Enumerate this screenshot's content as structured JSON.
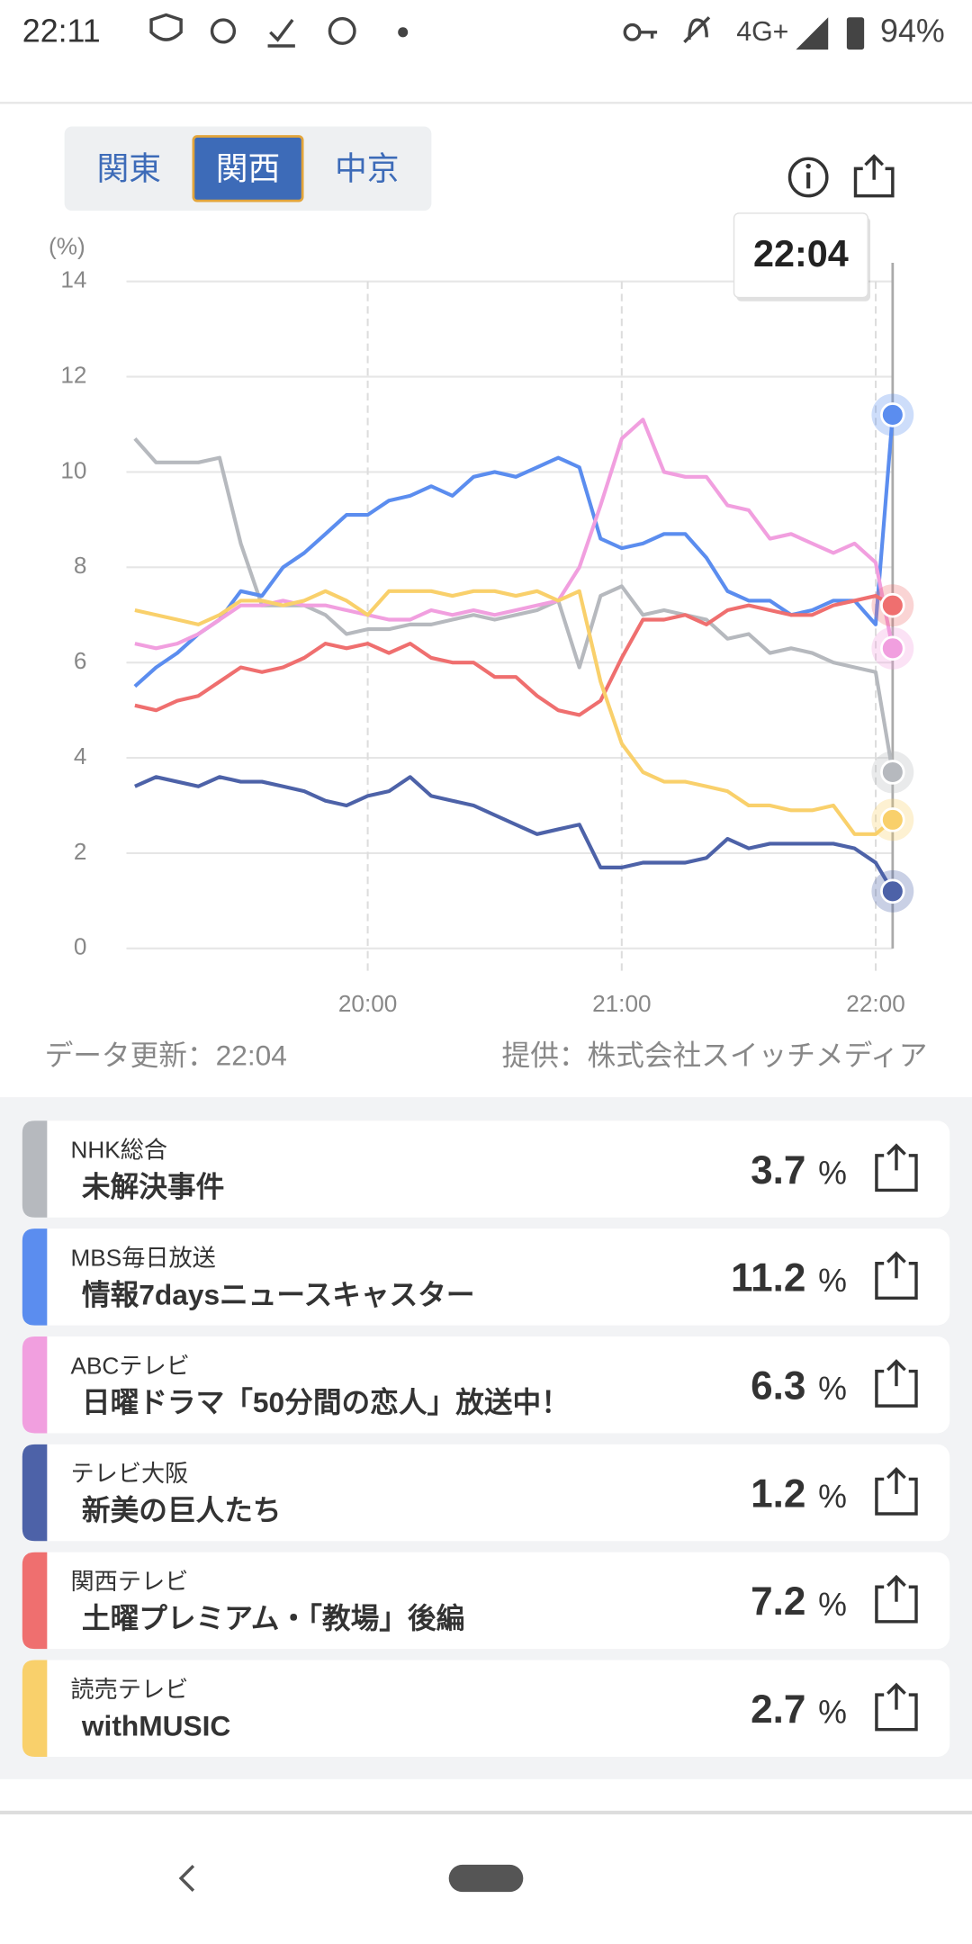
{
  "status_bar": {
    "time": "22:11",
    "network": "4G+",
    "battery": "94%"
  },
  "tabs": [
    "関東",
    "関西",
    "中京"
  ],
  "selected_tab": 1,
  "chart_data": {
    "type": "line",
    "y_label": "(%)",
    "x": [
      "19:05",
      "19:10",
      "19:15",
      "19:20",
      "19:25",
      "19:30",
      "19:35",
      "19:40",
      "19:45",
      "19:50",
      "19:55",
      "20:00",
      "20:05",
      "20:10",
      "20:15",
      "20:20",
      "20:25",
      "20:30",
      "20:35",
      "20:40",
      "20:45",
      "20:50",
      "20:55",
      "21:00",
      "21:05",
      "21:10",
      "21:15",
      "21:20",
      "21:25",
      "21:30",
      "21:35",
      "21:40",
      "21:45",
      "21:50",
      "21:55",
      "22:00",
      "22:04"
    ],
    "xlim": [
      "19:03",
      "22:04"
    ],
    "xticks": [
      "20:00",
      "21:00",
      "22:00"
    ],
    "ylim": [
      0,
      14
    ],
    "yticks": [
      0,
      2,
      4,
      6,
      8,
      10,
      12,
      14
    ],
    "grid": true,
    "series": [
      {
        "name": "NHK総合",
        "color": "#b6b9be",
        "values": [
          10.7,
          10.2,
          10.2,
          10.2,
          10.3,
          8.5,
          7.2,
          7.2,
          7.2,
          7.0,
          6.6,
          6.7,
          6.7,
          6.8,
          6.8,
          6.9,
          7.0,
          6.9,
          7.0,
          7.1,
          7.3,
          5.9,
          7.4,
          7.6,
          7.0,
          7.1,
          7.0,
          6.9,
          6.5,
          6.6,
          6.2,
          6.3,
          6.2,
          6.0,
          5.9,
          5.8,
          3.7
        ]
      },
      {
        "name": "MBS毎日放送",
        "color": "#5b8def",
        "values": [
          5.5,
          5.9,
          6.2,
          6.6,
          6.9,
          7.5,
          7.4,
          8.0,
          8.3,
          8.7,
          9.1,
          9.1,
          9.4,
          9.5,
          9.7,
          9.5,
          9.9,
          10.0,
          9.9,
          10.1,
          10.3,
          10.1,
          8.6,
          8.4,
          8.5,
          8.7,
          8.7,
          8.2,
          7.5,
          7.3,
          7.3,
          7.0,
          7.1,
          7.3,
          7.3,
          6.8,
          11.2
        ]
      },
      {
        "name": "ABCテレビ",
        "color": "#f19fdf",
        "values": [
          6.4,
          6.3,
          6.4,
          6.6,
          6.9,
          7.2,
          7.2,
          7.3,
          7.2,
          7.2,
          7.1,
          7.0,
          6.9,
          6.9,
          7.1,
          7.0,
          7.1,
          7.0,
          7.1,
          7.2,
          7.3,
          8.0,
          9.3,
          10.7,
          11.1,
          10.0,
          9.9,
          9.9,
          9.3,
          9.2,
          8.6,
          8.7,
          8.5,
          8.3,
          8.5,
          8.1,
          6.3
        ]
      },
      {
        "name": "テレビ大阪",
        "color": "#4d62a8",
        "values": [
          3.4,
          3.6,
          3.5,
          3.4,
          3.6,
          3.5,
          3.5,
          3.4,
          3.3,
          3.1,
          3.0,
          3.2,
          3.3,
          3.6,
          3.2,
          3.1,
          3.0,
          2.8,
          2.6,
          2.4,
          2.5,
          2.6,
          1.7,
          1.7,
          1.8,
          1.8,
          1.8,
          1.9,
          2.3,
          2.1,
          2.2,
          2.2,
          2.2,
          2.2,
          2.1,
          1.8,
          1.2
        ]
      },
      {
        "name": "関西テレビ",
        "color": "#ef6f6f",
        "values": [
          5.1,
          5.0,
          5.2,
          5.3,
          5.6,
          5.9,
          5.8,
          5.9,
          6.1,
          6.4,
          6.3,
          6.4,
          6.2,
          6.4,
          6.1,
          6.0,
          6.0,
          5.7,
          5.7,
          5.3,
          5.0,
          4.9,
          5.2,
          6.1,
          6.9,
          6.9,
          7.0,
          6.8,
          7.1,
          7.2,
          7.1,
          7.0,
          7.0,
          7.2,
          7.3,
          7.4,
          7.2
        ]
      },
      {
        "name": "読売テレビ",
        "color": "#f9d06b",
        "values": [
          7.1,
          7.0,
          6.9,
          6.8,
          7.0,
          7.3,
          7.3,
          7.2,
          7.3,
          7.5,
          7.3,
          7.0,
          7.5,
          7.5,
          7.5,
          7.4,
          7.5,
          7.5,
          7.4,
          7.5,
          7.3,
          7.5,
          5.6,
          4.3,
          3.7,
          3.5,
          3.5,
          3.4,
          3.3,
          3.0,
          3.0,
          2.9,
          2.9,
          3.0,
          2.4,
          2.4,
          2.7
        ]
      }
    ]
  },
  "update_text": "データ更新：22:04",
  "provider": "提供：株式会社スイッチメディア",
  "programs": [
    "未解決事件",
    "情報7daysニュースキャスター",
    "日曜ドラマ「50分間の恋人」放送中！",
    "新美の巨人たち",
    "土曜プレミアム・「教場」後編",
    "withMUSIC"
  ],
  "rate_unit": "%"
}
